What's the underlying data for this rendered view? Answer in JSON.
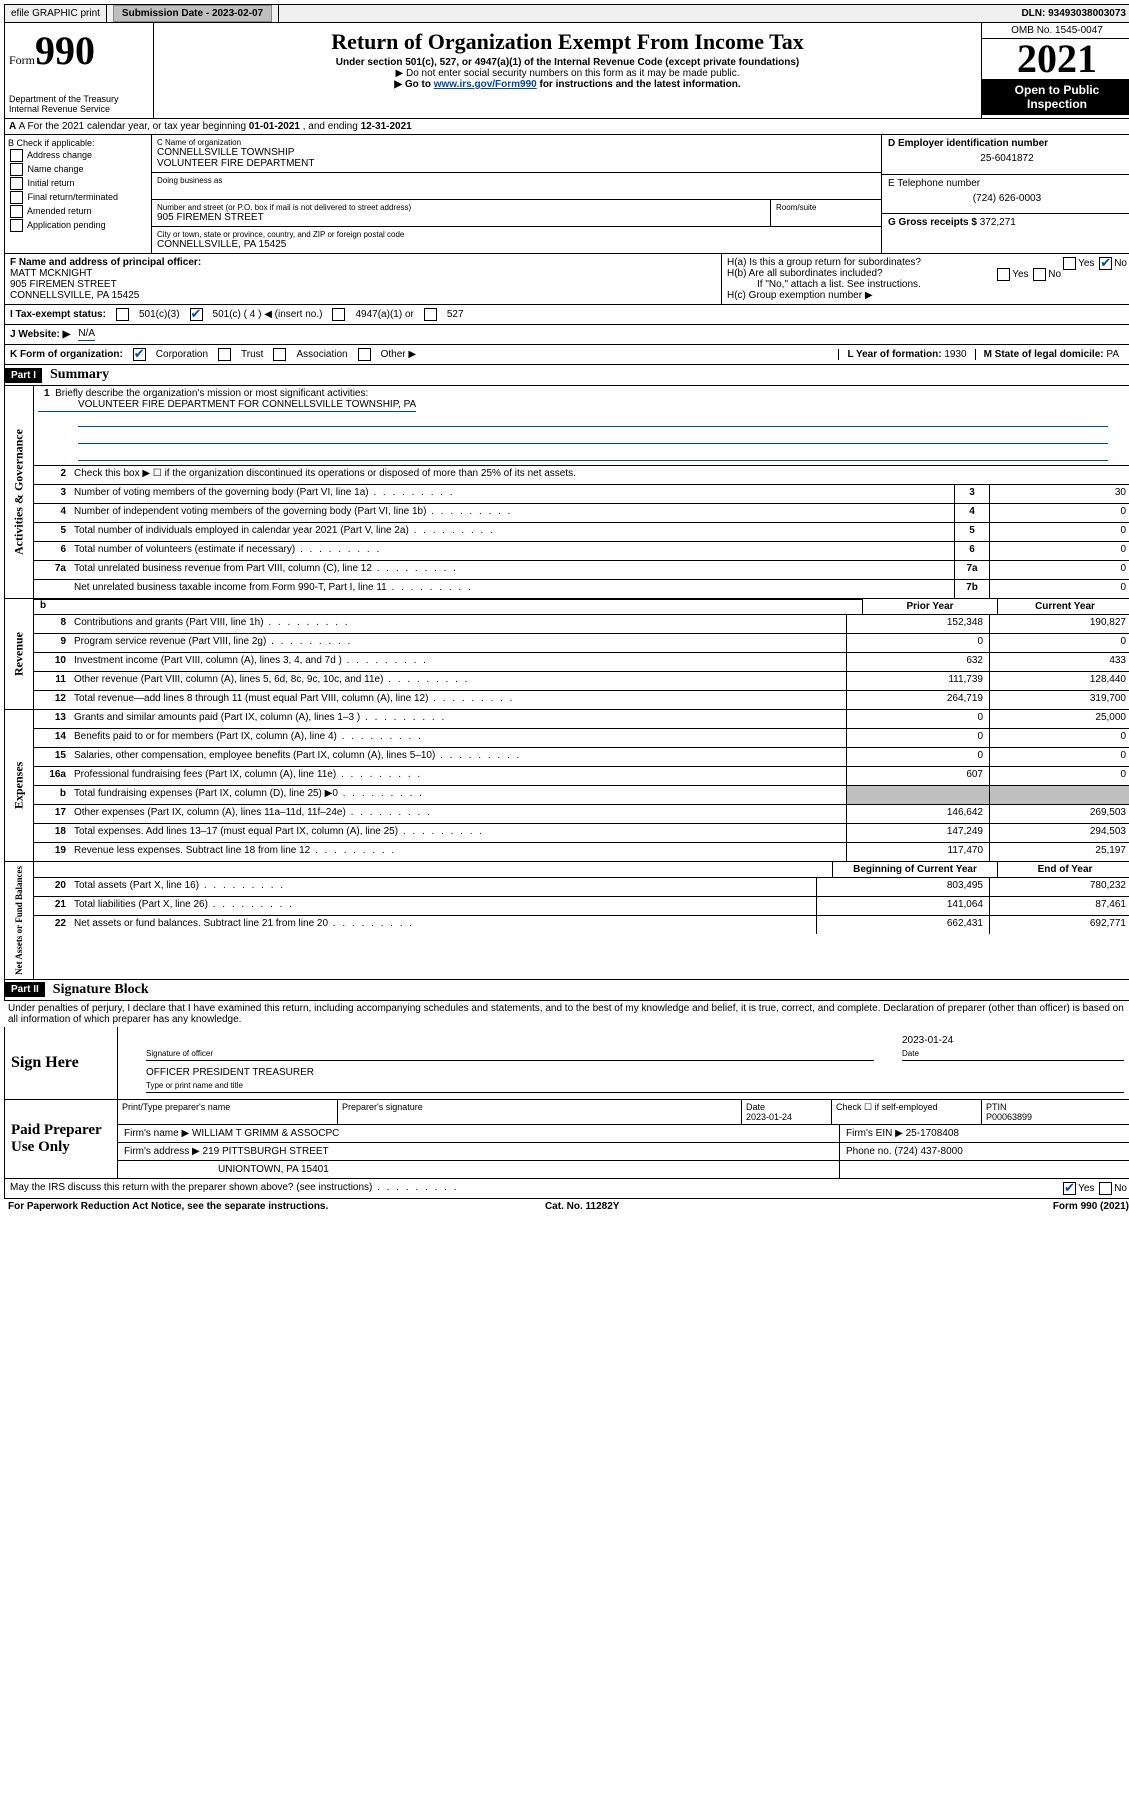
{
  "top": {
    "efile": "efile GRAPHIC print",
    "submission_label": "Submission Date - ",
    "submission_date": "2023-02-07",
    "dln_label": "DLN: ",
    "dln": "93493038003073"
  },
  "header": {
    "form_word": "Form",
    "form_num": "990",
    "dept": "Department of the Treasury",
    "irs": "Internal Revenue Service",
    "title": "Return of Organization Exempt From Income Tax",
    "sub": "Under section 501(c), 527, or 4947(a)(1) of the Internal Revenue Code (except private foundations)",
    "note1": "▶ Do not enter social security numbers on this form as it may be made public.",
    "note2_prefix": "▶ Go to ",
    "note2_link": "www.irs.gov/Form990",
    "note2_suffix": " for instructions and the latest information.",
    "omb": "OMB No. 1545-0047",
    "year": "2021",
    "inspection": "Open to Public Inspection"
  },
  "rowA": {
    "text_prefix": "A For the 2021 calendar year, or tax year beginning ",
    "begin": "01-01-2021",
    "mid": " , and ending ",
    "end": "12-31-2021"
  },
  "colB": {
    "header": "B Check if applicable:",
    "items": [
      "Address change",
      "Name change",
      "Initial return",
      "Final return/terminated",
      "Amended return",
      "Application pending"
    ]
  },
  "colC": {
    "name_label": "C Name of organization",
    "name1": "CONNELLSVILLE TOWNSHIP",
    "name2": "VOLUNTEER FIRE DEPARTMENT",
    "dba_label": "Doing business as",
    "street_label": "Number and street (or P.O. box if mail is not delivered to street address)",
    "room_label": "Room/suite",
    "street": "905 FIREMEN STREET",
    "city_label": "City or town, state or province, country, and ZIP or foreign postal code",
    "city": "CONNELLSVILLE, PA  15425"
  },
  "colD": {
    "ein_label": "D Employer identification number",
    "ein": "25-6041872",
    "phone_label": "E Telephone number",
    "phone": "(724) 626-0003",
    "gross_label": "G Gross receipts $ ",
    "gross": "372,271"
  },
  "rowF": {
    "label": "F Name and address of principal officer:",
    "name": "MATT MCKNIGHT",
    "street": "905 FIREMEN STREET",
    "city": "CONNELLSVILLE, PA  15425"
  },
  "rowH": {
    "ha": "H(a)  Is this a group return for subordinates?",
    "hb": "H(b)  Are all subordinates included?",
    "hb_note": "If \"No,\" attach a list. See instructions.",
    "hc": "H(c)  Group exemption number ▶",
    "yes": "Yes",
    "no": "No"
  },
  "rowI": {
    "label": "I   Tax-exempt status:",
    "o1": "501(c)(3)",
    "o2": "501(c) ( 4 ) ◀ (insert no.)",
    "o3": "4947(a)(1) or",
    "o4": "527"
  },
  "rowJ": {
    "label": "J   Website: ▶",
    "value": "N/A"
  },
  "rowK": {
    "label": "K Form of organization:",
    "o1": "Corporation",
    "o2": "Trust",
    "o3": "Association",
    "o4": "Other ▶",
    "l_label": "L Year of formation: ",
    "l_val": "1930",
    "m_label": "M State of legal domicile: ",
    "m_val": "PA"
  },
  "part1": {
    "header": "Part I",
    "title": "Summary",
    "q1_label": "Briefly describe the organization's mission or most significant activities:",
    "q1_val": "VOLUNTEER FIRE DEPARTMENT FOR CONNELLSVILLE TOWNSHIP, PA",
    "q2": "Check this box ▶ ☐  if the organization discontinued its operations or disposed of more than 25% of its net assets.",
    "prior": "Prior Year",
    "current": "Current Year",
    "boy": "Beginning of Current Year",
    "eoy": "End of Year",
    "tabs": {
      "ag": "Activities & Governance",
      "rev": "Revenue",
      "exp": "Expenses",
      "net": "Net Assets or Fund Balances"
    },
    "lines_single": [
      {
        "n": "3",
        "d": "Number of voting members of the governing body (Part VI, line 1a)",
        "b": "3",
        "v": "30"
      },
      {
        "n": "4",
        "d": "Number of independent voting members of the governing body (Part VI, line 1b)",
        "b": "4",
        "v": "0"
      },
      {
        "n": "5",
        "d": "Total number of individuals employed in calendar year 2021 (Part V, line 2a)",
        "b": "5",
        "v": "0"
      },
      {
        "n": "6",
        "d": "Total number of volunteers (estimate if necessary)",
        "b": "6",
        "v": "0"
      },
      {
        "n": "7a",
        "d": "Total unrelated business revenue from Part VIII, column (C), line 12",
        "b": "7a",
        "v": "0"
      },
      {
        "n": "",
        "d": "Net unrelated business taxable income from Form 990-T, Part I, line 11",
        "b": "7b",
        "v": "0"
      }
    ],
    "lines_rev": [
      {
        "n": "8",
        "d": "Contributions and grants (Part VIII, line 1h)",
        "p": "152,348",
        "c": "190,827"
      },
      {
        "n": "9",
        "d": "Program service revenue (Part VIII, line 2g)",
        "p": "0",
        "c": "0"
      },
      {
        "n": "10",
        "d": "Investment income (Part VIII, column (A), lines 3, 4, and 7d )",
        "p": "632",
        "c": "433"
      },
      {
        "n": "11",
        "d": "Other revenue (Part VIII, column (A), lines 5, 6d, 8c, 9c, 10c, and 11e)",
        "p": "111,739",
        "c": "128,440"
      },
      {
        "n": "12",
        "d": "Total revenue—add lines 8 through 11 (must equal Part VIII, column (A), line 12)",
        "p": "264,719",
        "c": "319,700"
      }
    ],
    "lines_exp": [
      {
        "n": "13",
        "d": "Grants and similar amounts paid (Part IX, column (A), lines 1–3 )",
        "p": "0",
        "c": "25,000"
      },
      {
        "n": "14",
        "d": "Benefits paid to or for members (Part IX, column (A), line 4)",
        "p": "0",
        "c": "0"
      },
      {
        "n": "15",
        "d": "Salaries, other compensation, employee benefits (Part IX, column (A), lines 5–10)",
        "p": "0",
        "c": "0"
      },
      {
        "n": "16a",
        "d": "Professional fundraising fees (Part IX, column (A), line 11e)",
        "p": "607",
        "c": "0"
      },
      {
        "n": "b",
        "d": "Total fundraising expenses (Part IX, column (D), line 25) ▶0",
        "p": "",
        "c": "",
        "shade": true
      },
      {
        "n": "17",
        "d": "Other expenses (Part IX, column (A), lines 11a–11d, 11f–24e)",
        "p": "146,642",
        "c": "269,503"
      },
      {
        "n": "18",
        "d": "Total expenses. Add lines 13–17 (must equal Part IX, column (A), line 25)",
        "p": "147,249",
        "c": "294,503"
      },
      {
        "n": "19",
        "d": "Revenue less expenses. Subtract line 18 from line 12",
        "p": "117,470",
        "c": "25,197"
      }
    ],
    "lines_net": [
      {
        "n": "20",
        "d": "Total assets (Part X, line 16)",
        "p": "803,495",
        "c": "780,232"
      },
      {
        "n": "21",
        "d": "Total liabilities (Part X, line 26)",
        "p": "141,064",
        "c": "87,461"
      },
      {
        "n": "22",
        "d": "Net assets or fund balances. Subtract line 21 from line 20",
        "p": "662,431",
        "c": "692,771"
      }
    ]
  },
  "part2": {
    "header": "Part II",
    "title": "Signature Block",
    "decl": "Under penalties of perjury, I declare that I have examined this return, including accompanying schedules and statements, and to the best of my knowledge and belief, it is true, correct, and complete. Declaration of preparer (other than officer) is based on all information of which preparer has any knowledge.",
    "sign_here": "Sign Here",
    "sig_officer": "Signature of officer",
    "sig_date": "2023-01-24",
    "date_label": "Date",
    "officer_title": "OFFICER PRESIDENT TREASURER",
    "type_name": "Type or print name and title",
    "paid": "Paid Preparer Use Only",
    "prep_name_label": "Print/Type preparer's name",
    "prep_sig_label": "Preparer's signature",
    "prep_date": "2023-01-24",
    "check_self": "Check ☐ if self-employed",
    "ptin_label": "PTIN",
    "ptin": "P00063899",
    "firm_name_label": "Firm's name    ▶ ",
    "firm_name": "WILLIAM T GRIMM & ASSOCPC",
    "firm_ein_label": "Firm's EIN ▶ ",
    "firm_ein": "25-1708408",
    "firm_addr_label": "Firm's address ▶ ",
    "firm_addr1": "219 PITTSBURGH STREET",
    "firm_addr2": "UNIONTOWN, PA  15401",
    "firm_phone_label": "Phone no. ",
    "firm_phone": "(724) 437-8000",
    "discuss": "May the IRS discuss this return with the preparer shown above? (see instructions)"
  },
  "footer": {
    "pra": "For Paperwork Reduction Act Notice, see the separate instructions.",
    "cat": "Cat. No. 11282Y",
    "form": "Form 990 (2021)"
  }
}
